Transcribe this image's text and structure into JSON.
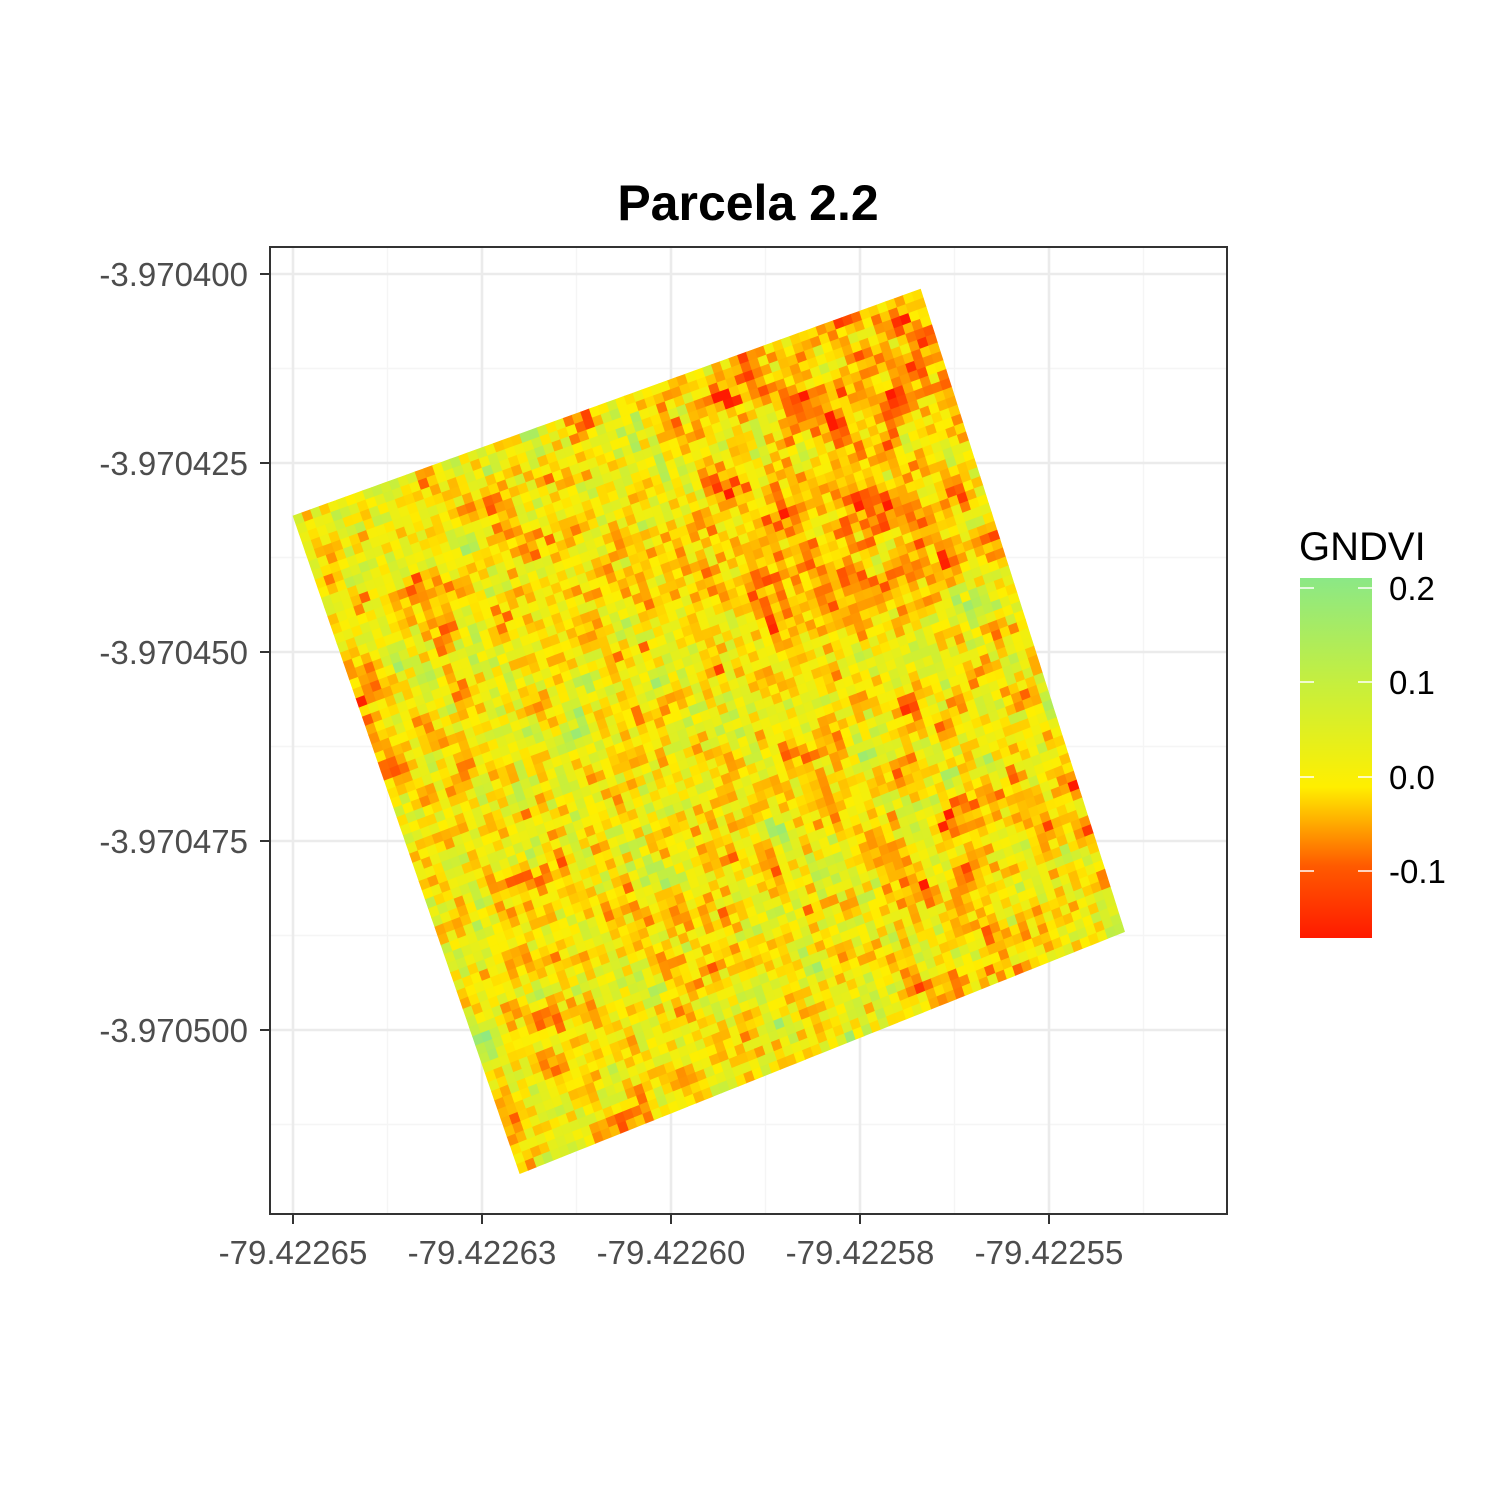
{
  "chart_data": {
    "type": "heatmap",
    "title": "Parcela 2.2",
    "xlabel": "",
    "ylabel": "",
    "x_ticks": [
      "-79.42265",
      "-79.42263",
      "-79.42260",
      "-79.42258",
      "-79.42255"
    ],
    "x_tick_values": [
      -79.42265,
      -79.422625,
      -79.4226,
      -79.422575,
      -79.42255
    ],
    "y_ticks": [
      "-3.970400",
      "-3.970425",
      "-3.970450",
      "-3.970475",
      "-3.970500"
    ],
    "y_tick_values": [
      -3.9704,
      -3.970425,
      -3.97045,
      -3.970475,
      -3.9705
    ],
    "xlim": [
      -79.422653,
      -79.42253
    ],
    "ylim": [
      -3.970524,
      -3.970396
    ],
    "grid": true,
    "plot_footprint": {
      "description": "rotated square raster of GNDVI values",
      "corners": [
        {
          "x": -79.42265,
          "y": -3.970432
        },
        {
          "x": -79.422567,
          "y": -3.970402
        },
        {
          "x": -79.42254,
          "y": -3.970487
        },
        {
          "x": -79.42262,
          "y": -3.970519
        }
      ]
    },
    "legend": {
      "title": "GNDVI",
      "placement": "right",
      "type": "colorbar",
      "range": [
        -0.17,
        0.21
      ],
      "ticks": [
        "0.2",
        "0.1",
        "0.0",
        "-0.1"
      ],
      "tick_values": [
        0.2,
        0.1,
        0.0,
        -0.1
      ],
      "colors": {
        "low": "#ff1a00",
        "mid_low": "#ff8c00",
        "mid": "#ffef00",
        "mid_high": "#c7ef3c",
        "high": "#8be886"
      }
    }
  },
  "colors": {
    "panel_border": "#333333",
    "grid_major": "#ebebeb",
    "grid_minor": "#f5f5f5",
    "tick_text": "#4d4d4d"
  }
}
